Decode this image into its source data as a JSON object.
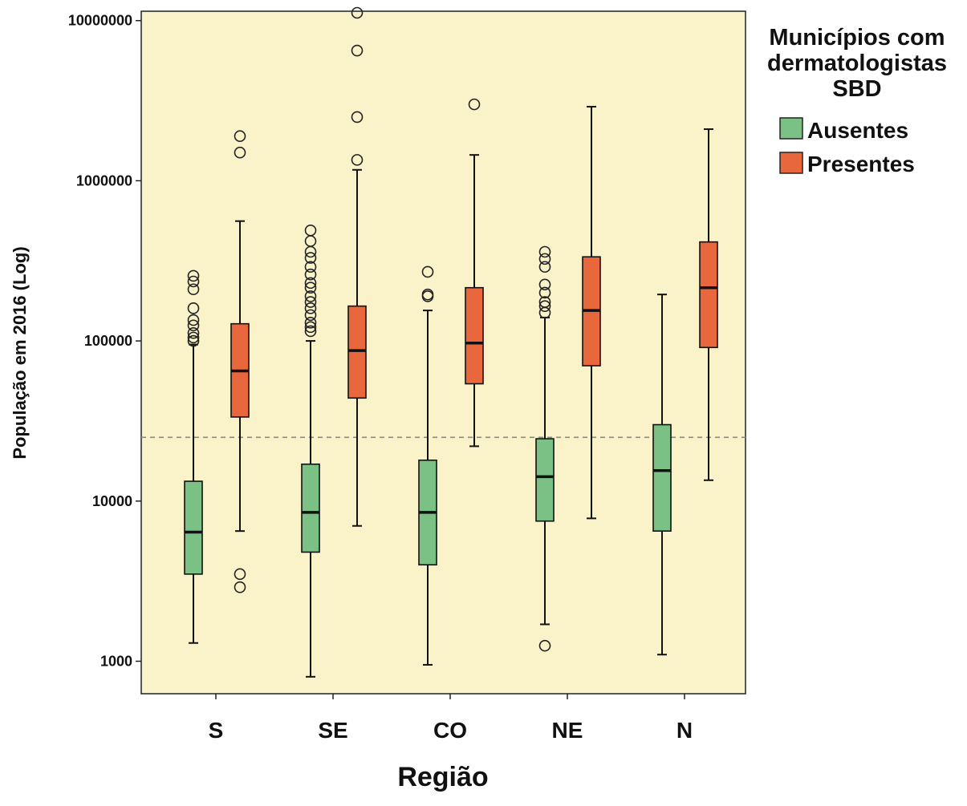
{
  "chart_data": {
    "type": "boxplot",
    "xlabel": "Região",
    "ylabel": "População em 2016 (Log)",
    "yscale": "log",
    "ylim": [
      600,
      11500000
    ],
    "yticks": [
      1000,
      10000,
      100000,
      1000000,
      10000000
    ],
    "ytick_labels": [
      "1000",
      "10000",
      "100000",
      "1000000",
      "10000000"
    ],
    "categories": [
      "S",
      "SE",
      "CO",
      "NE",
      "N"
    ],
    "reference_line": 25000,
    "background": "#faf3c9",
    "legend": {
      "title_lines": [
        "Municípios com",
        "dermatologistas",
        "SBD"
      ],
      "placement": "right"
    },
    "series": [
      {
        "name": "Ausentes",
        "color": "#7bc084",
        "boxes": [
          {
            "category": "S",
            "whisker_low": 1300,
            "q1": 3500,
            "median": 6400,
            "q3": 13300,
            "whisker_high": 95000,
            "outliers": [
              100000,
              105000,
              112000,
              125000,
              135000,
              160000,
              210000,
              235000,
              255000
            ]
          },
          {
            "category": "SE",
            "whisker_low": 800,
            "q1": 4800,
            "median": 8500,
            "q3": 17000,
            "whisker_high": 100000,
            "outliers": [
              115000,
              122000,
              130000,
              145000,
              160000,
              175000,
              190000,
              215000,
              230000,
              260000,
              290000,
              330000,
              360000,
              420000,
              490000
            ]
          },
          {
            "category": "CO",
            "whisker_low": 950,
            "q1": 4000,
            "median": 8500,
            "q3": 18000,
            "whisker_high": 155000,
            "outliers": [
              190000,
              195000,
              270000
            ]
          },
          {
            "category": "NE",
            "whisker_low": 1700,
            "q1": 7500,
            "median": 14200,
            "q3": 24500,
            "whisker_high": 140000,
            "outliers": [
              1250,
              150000,
              165000,
              175000,
              200000,
              225000,
              290000,
              325000,
              360000
            ]
          },
          {
            "category": "N",
            "whisker_low": 1100,
            "q1": 6500,
            "median": 15500,
            "q3": 30000,
            "whisker_high": 195000,
            "outliers": []
          }
        ]
      },
      {
        "name": "Presentes",
        "color": "#e8673c",
        "boxes": [
          {
            "category": "S",
            "whisker_low": 6500,
            "q1": 33500,
            "median": 65000,
            "q3": 128000,
            "whisker_high": 560000,
            "outliers": [
              2900,
              3500,
              1500000,
              1900000
            ]
          },
          {
            "category": "SE",
            "whisker_low": 7000,
            "q1": 44000,
            "median": 87000,
            "q3": 165000,
            "whisker_high": 1170000,
            "outliers": [
              1350000,
              2500000,
              6500000,
              11300000
            ]
          },
          {
            "category": "CO",
            "whisker_low": 22000,
            "q1": 54000,
            "median": 97000,
            "q3": 215000,
            "whisker_high": 1450000,
            "outliers": [
              3000000
            ]
          },
          {
            "category": "NE",
            "whisker_low": 7800,
            "q1": 70000,
            "median": 155000,
            "q3": 335000,
            "whisker_high": 2900000,
            "outliers": []
          },
          {
            "category": "N",
            "whisker_low": 13500,
            "q1": 91000,
            "median": 215000,
            "q3": 415000,
            "whisker_high": 2100000,
            "outliers": []
          }
        ]
      }
    ]
  }
}
